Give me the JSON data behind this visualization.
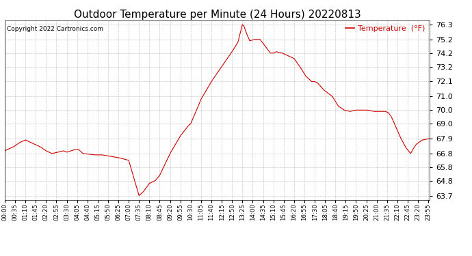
{
  "title": "Outdoor Temperature per Minute (24 Hours) 20220813",
  "copyright_text": "Copyright 2022 Cartronics.com",
  "legend_label": "Temperature  (°F)",
  "line_color": "#cc0000",
  "background_color": "#ffffff",
  "grid_color": "#bbbbbb",
  "yticks": [
    63.7,
    64.8,
    65.8,
    66.8,
    67.9,
    69.0,
    70.0,
    71.0,
    72.1,
    73.2,
    74.2,
    75.2,
    76.3
  ],
  "ylim": [
    63.4,
    76.6
  ],
  "title_fontsize": 11,
  "xtick_interval_minutes": 35,
  "total_minutes": 1440,
  "keypoints": [
    [
      0,
      67.0
    ],
    [
      10,
      67.1
    ],
    [
      30,
      67.3
    ],
    [
      50,
      67.6
    ],
    [
      70,
      67.8
    ],
    [
      100,
      67.5
    ],
    [
      120,
      67.3
    ],
    [
      140,
      67.0
    ],
    [
      160,
      66.8
    ],
    [
      200,
      67.0
    ],
    [
      210,
      66.9
    ],
    [
      240,
      67.1
    ],
    [
      250,
      67.1
    ],
    [
      265,
      66.8
    ],
    [
      305,
      66.7
    ],
    [
      330,
      66.7
    ],
    [
      385,
      66.5
    ],
    [
      420,
      66.3
    ],
    [
      455,
      63.7
    ],
    [
      470,
      64.0
    ],
    [
      490,
      64.6
    ],
    [
      510,
      64.8
    ],
    [
      525,
      65.2
    ],
    [
      560,
      66.8
    ],
    [
      595,
      68.1
    ],
    [
      620,
      68.8
    ],
    [
      630,
      69.0
    ],
    [
      650,
      70.0
    ],
    [
      665,
      70.8
    ],
    [
      700,
      72.1
    ],
    [
      735,
      73.2
    ],
    [
      770,
      74.3
    ],
    [
      790,
      75.0
    ],
    [
      805,
      76.3
    ],
    [
      810,
      76.2
    ],
    [
      820,
      75.6
    ],
    [
      830,
      75.1
    ],
    [
      845,
      75.2
    ],
    [
      865,
      75.2
    ],
    [
      900,
      74.2
    ],
    [
      910,
      74.2
    ],
    [
      920,
      74.3
    ],
    [
      940,
      74.2
    ],
    [
      960,
      74.0
    ],
    [
      980,
      73.8
    ],
    [
      1000,
      73.2
    ],
    [
      1020,
      72.5
    ],
    [
      1040,
      72.1
    ],
    [
      1050,
      72.1
    ],
    [
      1060,
      72.0
    ],
    [
      1080,
      71.5
    ],
    [
      1110,
      71.0
    ],
    [
      1130,
      70.3
    ],
    [
      1150,
      70.0
    ],
    [
      1170,
      69.9
    ],
    [
      1190,
      70.0
    ],
    [
      1210,
      70.0
    ],
    [
      1230,
      70.0
    ],
    [
      1250,
      69.9
    ],
    [
      1260,
      69.9
    ],
    [
      1270,
      69.9
    ],
    [
      1290,
      69.9
    ],
    [
      1300,
      69.8
    ],
    [
      1310,
      69.5
    ],
    [
      1330,
      68.5
    ],
    [
      1340,
      68.0
    ],
    [
      1360,
      67.2
    ],
    [
      1375,
      66.8
    ],
    [
      1385,
      67.2
    ],
    [
      1395,
      67.5
    ],
    [
      1415,
      67.8
    ],
    [
      1439,
      67.9
    ]
  ]
}
